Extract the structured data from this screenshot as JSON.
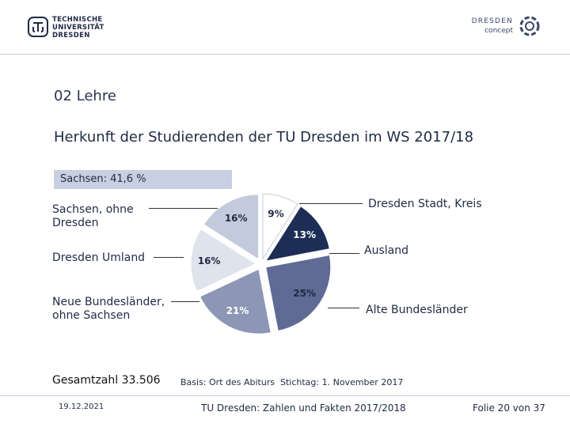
{
  "header": {
    "tud_logo_lines": [
      "TECHNISCHE",
      "UNIVERSITÄT",
      "DRESDEN"
    ],
    "dc_logo_line1": "DRESDEN",
    "dc_logo_line2": "concept"
  },
  "section": "02 Lehre",
  "title": "Herkunft der Studierenden der TU Dresden im WS 2017/18",
  "sachsen_label": "Sachsen: 41,6 %",
  "chart_data": {
    "type": "pie",
    "title": "",
    "series": [
      {
        "name": "Sachsen, ohne Dresden",
        "label": "16%",
        "value": 16,
        "color": "#c3cadb"
      },
      {
        "name": "Dresden Stadt, Kreis",
        "label": "9%",
        "value": 9,
        "color": "#ffffff"
      },
      {
        "name": "Ausland",
        "label": "13%",
        "value": 13,
        "color": "#1c2d56"
      },
      {
        "name": "Alte Bundesländer",
        "label": "25%",
        "value": 25,
        "color": "#5f6a95"
      },
      {
        "name": "Neue Bundesländer, ohne Sachsen",
        "label": "21%",
        "value": 21,
        "color": "#8e96b6"
      },
      {
        "name": "Dresden Umland",
        "label": "16%",
        "value": 16,
        "color": "#dfe3ee"
      }
    ]
  },
  "labels": {
    "sachsen_ohne_dresden": "Sachsen, ohne Dresden",
    "dresden_umland": "Dresden Umland",
    "neue_bundeslaender": "Neue Bundesländer, ohne Sachsen",
    "dresden_stadt": "Dresden Stadt, Kreis",
    "ausland": "Ausland",
    "alte_bundeslaender": "Alte Bundesländer"
  },
  "notes": {
    "gesamt": "Gesamtzahl 33.506",
    "basis": "Basis: Ort des Abiturs",
    "stichtag": "Stichtag: 1. November 2017"
  },
  "footer": {
    "date": "19.12.2021",
    "source": "TU Dresden: Zahlen und Fakten 2017/2018",
    "slide": "Folie 20 von 37"
  }
}
